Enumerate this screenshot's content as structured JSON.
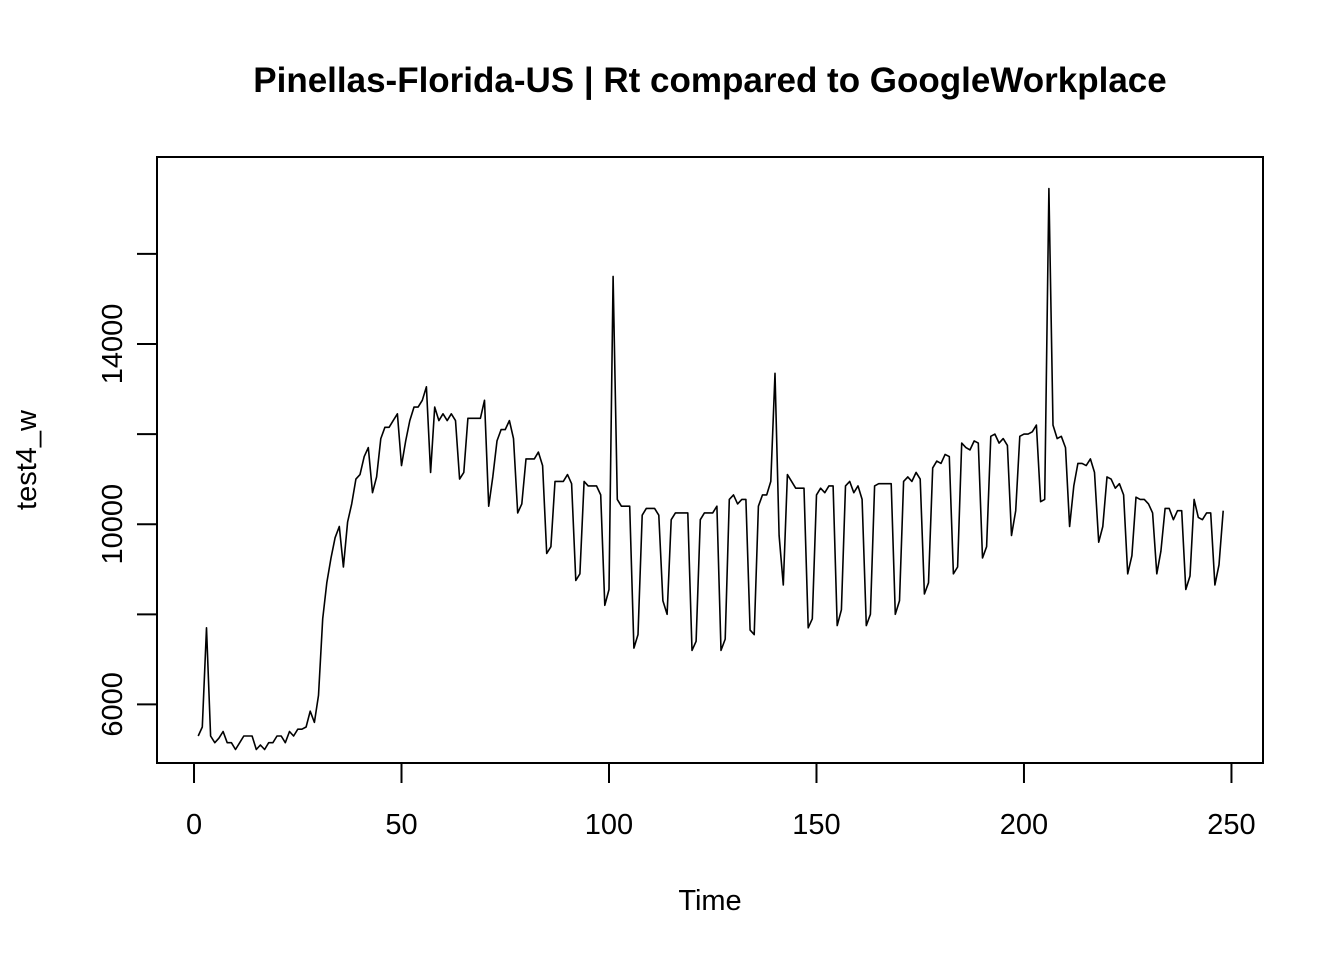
{
  "chart_data": {
    "type": "line",
    "title": "Pinellas-Florida-US | Rt compared to GoogleWorkplace",
    "xlabel": "Time",
    "ylabel": "test4_w",
    "xlim": [
      -8.92,
      257.6
    ],
    "ylim": [
      4700,
      18150
    ],
    "x_ticks": [
      0,
      50,
      100,
      150,
      200,
      250
    ],
    "y_ticks": [
      6000,
      10000,
      14000
    ],
    "y_minor_ticks": [
      8000,
      12000,
      16000
    ],
    "line_color": "#000000",
    "grid": false,
    "series": [
      {
        "x_start": 1,
        "values": [
          5300,
          5500,
          7700,
          5300,
          5150,
          5250,
          5400,
          5150,
          5150,
          5000,
          5150,
          5300,
          5300,
          5300,
          5000,
          5100,
          5000,
          5150,
          5150,
          5300,
          5300,
          5150,
          5400,
          5300,
          5450,
          5450,
          5500,
          5850,
          5600,
          6200,
          7900,
          8700,
          9250,
          9700,
          9950,
          9050,
          10050,
          10450,
          11000,
          11100,
          11500,
          11700,
          10700,
          11050,
          11900,
          12150,
          12150,
          12300,
          12450,
          11300,
          11850,
          12300,
          12600,
          12600,
          12750,
          13050,
          11150,
          12600,
          12300,
          12450,
          12300,
          12450,
          12300,
          11000,
          11150,
          12350,
          12350,
          12350,
          12350,
          12750,
          10400,
          11050,
          11850,
          12100,
          12100,
          12300,
          11900,
          10250,
          10450,
          11450,
          11450,
          11450,
          11600,
          11300,
          9350,
          9500,
          10950,
          10950,
          10950,
          11100,
          10900,
          8750,
          8900,
          10950,
          10850,
          10850,
          10850,
          10650,
          8200,
          8550,
          15500,
          10550,
          10400,
          10400,
          10400,
          7250,
          7550,
          10200,
          10350,
          10350,
          10350,
          10200,
          8300,
          8000,
          10100,
          10250,
          10250,
          10250,
          10250,
          7200,
          7400,
          10100,
          10250,
          10250,
          10250,
          10400,
          7200,
          7450,
          10550,
          10650,
          10450,
          10550,
          10550,
          7650,
          7550,
          10400,
          10650,
          10650,
          10950,
          13350,
          9750,
          8650,
          11100,
          10950,
          10800,
          10800,
          10800,
          7700,
          7900,
          10650,
          10800,
          10700,
          10850,
          10850,
          7750,
          8100,
          10850,
          10950,
          10700,
          10850,
          10550,
          7750,
          8000,
          10850,
          10900,
          10900,
          10900,
          10900,
          8000,
          8300,
          10950,
          11050,
          10950,
          11150,
          11000,
          8450,
          8700,
          11250,
          11400,
          11350,
          11550,
          11500,
          8900,
          9050,
          11800,
          11700,
          11650,
          11850,
          11800,
          9250,
          9500,
          11950,
          12000,
          11800,
          11900,
          11750,
          9750,
          10300,
          11950,
          12000,
          12000,
          12050,
          12200,
          10500,
          10550,
          17450,
          12200,
          11900,
          11950,
          11700,
          9950,
          10850,
          11350,
          11350,
          11300,
          11450,
          11150,
          9600,
          9950,
          11050,
          11000,
          10800,
          10900,
          10650,
          8900,
          9300,
          10600,
          10550,
          10550,
          10450,
          10250,
          8900,
          9400,
          10350,
          10350,
          10100,
          10300,
          10300,
          8550,
          8850,
          10550,
          10150,
          10100,
          10250,
          10250,
          8650,
          9100,
          10300
        ]
      }
    ]
  }
}
